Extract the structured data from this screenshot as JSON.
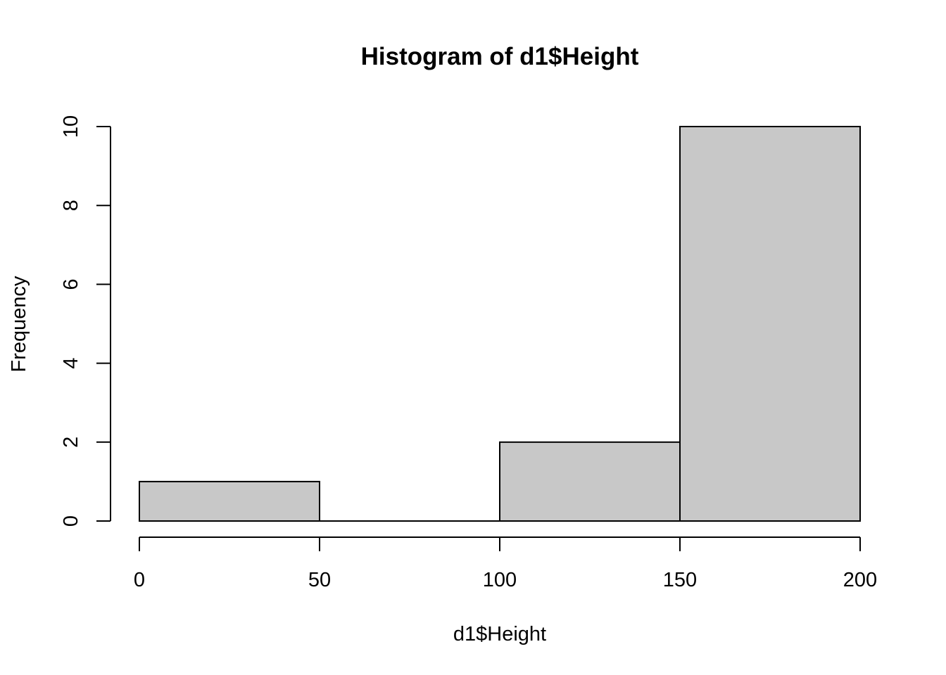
{
  "chart_data": {
    "type": "bar",
    "subtype": "histogram",
    "title": "Histogram of d1$Height",
    "xlabel": "d1$Height",
    "ylabel": "Frequency",
    "bins": [
      {
        "start": 0,
        "end": 50,
        "count": 1
      },
      {
        "start": 50,
        "end": 100,
        "count": 0
      },
      {
        "start": 100,
        "end": 150,
        "count": 2
      },
      {
        "start": 150,
        "end": 200,
        "count": 10
      }
    ],
    "xlim": [
      0,
      200
    ],
    "ylim": [
      0,
      10
    ],
    "x_ticks": [
      0,
      50,
      100,
      150,
      200
    ],
    "y_ticks": [
      0,
      2,
      4,
      6,
      8,
      10
    ],
    "grid": false,
    "legend": "none",
    "bar_color": "#c8c8c8",
    "border_color": "#000000"
  }
}
